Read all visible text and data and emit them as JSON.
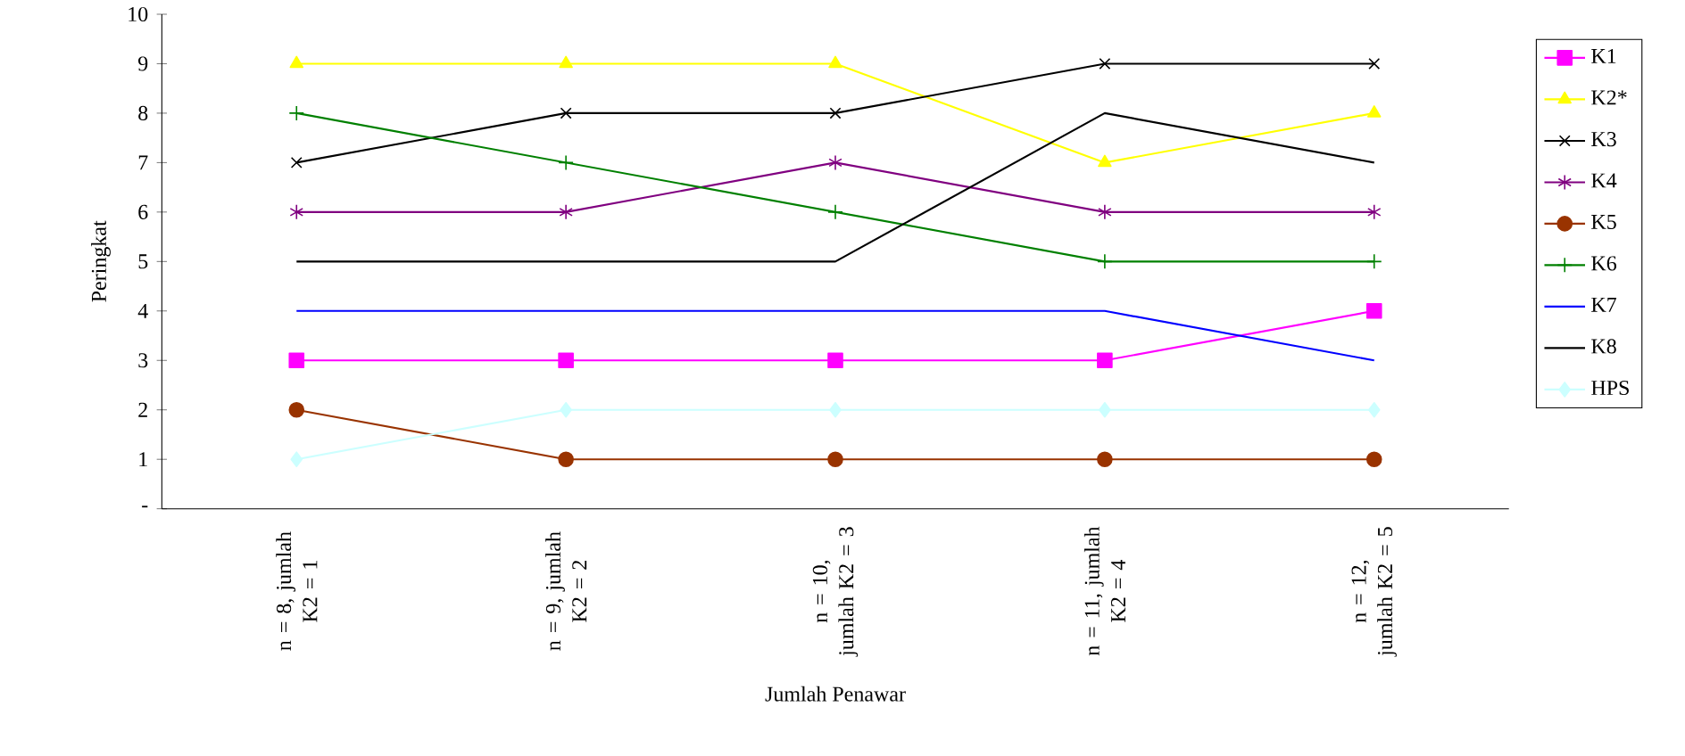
{
  "chart_data": {
    "type": "line",
    "xlabel": "Jumlah Penawar",
    "ylabel": "Peringkat",
    "categories": [
      "n = 8, jumlah K2 = 1",
      "n = 9, jumlah K2 = 2",
      "n = 10, jumlah K2 = 3",
      "n = 11, jumlah K2 = 4",
      "n = 12, jumlah K2 = 5"
    ],
    "series": [
      {
        "name": "K1",
        "color": "#ff00ff",
        "marker": "square",
        "values": [
          3,
          3,
          3,
          3,
          4
        ]
      },
      {
        "name": "K2*",
        "color": "#ffff00",
        "marker": "triangle",
        "values": [
          9,
          9,
          9,
          7,
          8
        ]
      },
      {
        "name": "K3",
        "color": "#000000",
        "marker": "x",
        "values": [
          7,
          8,
          8,
          9,
          9
        ]
      },
      {
        "name": "K4",
        "color": "#800080",
        "marker": "cross",
        "values": [
          6,
          6,
          7,
          6,
          6
        ]
      },
      {
        "name": "K5",
        "color": "#993300",
        "marker": "circle",
        "values": [
          2,
          1,
          1,
          1,
          1
        ]
      },
      {
        "name": "K6",
        "color": "#008000",
        "marker": "plus",
        "values": [
          8,
          7,
          6,
          5,
          5
        ]
      },
      {
        "name": "K7",
        "color": "#0000ff",
        "marker": "none",
        "values": [
          4,
          4,
          4,
          4,
          3
        ]
      },
      {
        "name": "K8",
        "color": "#000000",
        "marker": "none",
        "values": [
          5,
          5,
          5,
          8,
          7
        ]
      },
      {
        "name": "HPS",
        "color": "#ccffff",
        "marker": "diamond",
        "values": [
          1,
          2,
          2,
          2,
          2
        ]
      }
    ],
    "ylim": [
      0,
      10
    ],
    "yticks": [
      {
        "value": 0,
        "label": "-"
      },
      1,
      2,
      3,
      4,
      5,
      6,
      7,
      8,
      9,
      10
    ],
    "legend": "right",
    "grid": false
  }
}
